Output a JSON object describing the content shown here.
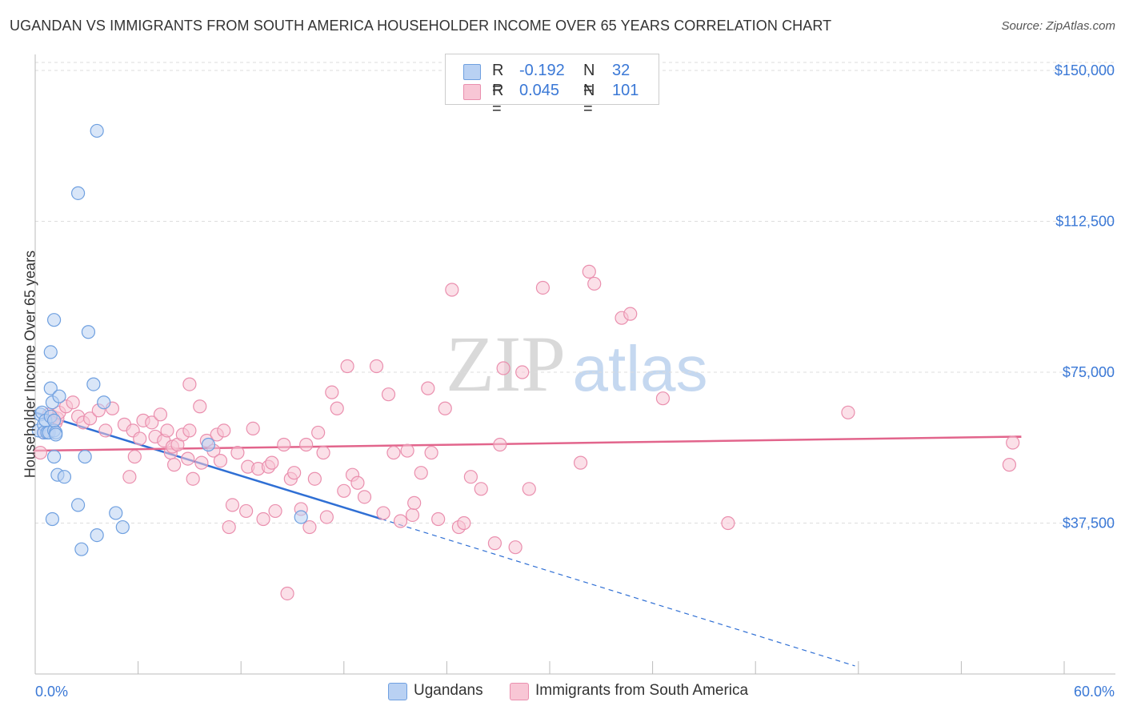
{
  "header": {
    "title": "UGANDAN VS IMMIGRANTS FROM SOUTH AMERICA HOUSEHOLDER INCOME OVER 65 YEARS CORRELATION CHART",
    "source": "Source: ZipAtlas.com"
  },
  "watermark": {
    "zip": "ZIP",
    "atlas": "atlas"
  },
  "legend": {
    "rows": [
      {
        "r_label": "R =",
        "r_value": "-0.192",
        "n_label": "N =",
        "n_value": "32",
        "color": "#aac8f4"
      },
      {
        "r_label": "R =",
        "r_value": "0.045",
        "n_label": "N =",
        "n_value": "101",
        "color": "#f6b9ca"
      }
    ]
  },
  "chart_data": {
    "type": "scatter",
    "title": "UGANDAN VS IMMIGRANTS FROM SOUTH AMERICA HOUSEHOLDER INCOME OVER 65 YEARS CORRELATION CHART",
    "xlabel": "",
    "ylabel": "Householder Income Over 65 years",
    "xlim": [
      0,
      60
    ],
    "ylim": [
      0,
      152000
    ],
    "x_tick_labels": [
      "0.0%",
      "60.0%"
    ],
    "y_ticks": [
      37500,
      75000,
      112500,
      150000
    ],
    "y_tick_labels": [
      "$37,500",
      "$75,000",
      "$112,500",
      "$150,000"
    ],
    "grid": true,
    "legend_position": "bottom",
    "series": [
      {
        "name": "Ugandans",
        "color": "#6fa0e0",
        "fill": "#b9d1f3",
        "line_color": "#2f6fd4",
        "trend": {
          "x": [
            0,
            20.2
          ],
          "y": [
            65000,
            38500
          ],
          "dashed_to": [
            47.8,
            2000
          ]
        },
        "points": [
          [
            0.2,
            60500
          ],
          [
            0.3,
            64500
          ],
          [
            0.4,
            65000
          ],
          [
            0.5,
            62000
          ],
          [
            0.5,
            60000
          ],
          [
            0.6,
            63000
          ],
          [
            0.7,
            60000
          ],
          [
            0.8,
            60000
          ],
          [
            0.9,
            64000
          ],
          [
            0.9,
            80000
          ],
          [
            0.9,
            71000
          ],
          [
            1.0,
            67500
          ],
          [
            1.1,
            60500
          ],
          [
            1.1,
            63000
          ],
          [
            1.1,
            54000
          ],
          [
            1.0,
            38500
          ],
          [
            1.1,
            88000
          ],
          [
            1.2,
            60000
          ],
          [
            1.2,
            59500
          ],
          [
            1.3,
            49500
          ],
          [
            1.4,
            69000
          ],
          [
            1.7,
            49000
          ],
          [
            2.5,
            42000
          ],
          [
            2.5,
            119500
          ],
          [
            2.7,
            31000
          ],
          [
            2.9,
            54000
          ],
          [
            3.1,
            85000
          ],
          [
            3.4,
            72000
          ],
          [
            3.6,
            34500
          ],
          [
            3.6,
            135000
          ],
          [
            4.0,
            67500
          ],
          [
            4.7,
            40000
          ],
          [
            5.1,
            36500
          ],
          [
            10.1,
            57000
          ],
          [
            15.5,
            39000
          ]
        ]
      },
      {
        "name": "Immigrants from South America",
        "color": "#ea8fae",
        "fill": "#f8c6d5",
        "line_color": "#e2658c",
        "trend": {
          "x": [
            0,
            57.5
          ],
          "y": [
            55500,
            59000
          ]
        },
        "points": [
          [
            0.3,
            55000
          ],
          [
            0.5,
            60000
          ],
          [
            0.8,
            64500
          ],
          [
            1.0,
            64000
          ],
          [
            1.1,
            63000
          ],
          [
            1.2,
            62500
          ],
          [
            1.3,
            63500
          ],
          [
            1.4,
            65000
          ],
          [
            1.8,
            66500
          ],
          [
            2.2,
            67500
          ],
          [
            2.5,
            64000
          ],
          [
            2.8,
            62500
          ],
          [
            3.2,
            63500
          ],
          [
            3.7,
            65500
          ],
          [
            4.1,
            60500
          ],
          [
            4.5,
            66000
          ],
          [
            5.2,
            62000
          ],
          [
            5.5,
            49000
          ],
          [
            5.7,
            60500
          ],
          [
            5.8,
            54000
          ],
          [
            6.1,
            58500
          ],
          [
            6.3,
            63000
          ],
          [
            6.8,
            62500
          ],
          [
            7.0,
            59000
          ],
          [
            7.3,
            64500
          ],
          [
            7.5,
            58000
          ],
          [
            7.7,
            60500
          ],
          [
            7.9,
            55000
          ],
          [
            8.0,
            56500
          ],
          [
            8.1,
            52000
          ],
          [
            8.3,
            57000
          ],
          [
            8.6,
            59500
          ],
          [
            8.9,
            53500
          ],
          [
            9.0,
            60500
          ],
          [
            9.2,
            48500
          ],
          [
            9.0,
            72000
          ],
          [
            9.6,
            66500
          ],
          [
            9.7,
            52500
          ],
          [
            10.0,
            58000
          ],
          [
            10.4,
            55500
          ],
          [
            10.6,
            59500
          ],
          [
            10.8,
            53000
          ],
          [
            11.0,
            60500
          ],
          [
            11.3,
            36500
          ],
          [
            11.5,
            42000
          ],
          [
            11.8,
            55000
          ],
          [
            12.3,
            40500
          ],
          [
            12.4,
            51500
          ],
          [
            12.7,
            61000
          ],
          [
            13.0,
            51000
          ],
          [
            13.3,
            38500
          ],
          [
            13.6,
            51500
          ],
          [
            13.8,
            52500
          ],
          [
            14.0,
            40500
          ],
          [
            14.5,
            57000
          ],
          [
            14.7,
            20000
          ],
          [
            14.9,
            48500
          ],
          [
            15.1,
            50000
          ],
          [
            15.5,
            41000
          ],
          [
            15.8,
            57000
          ],
          [
            16.0,
            36500
          ],
          [
            16.3,
            48500
          ],
          [
            16.5,
            60000
          ],
          [
            16.8,
            55000
          ],
          [
            17.0,
            39000
          ],
          [
            17.3,
            70000
          ],
          [
            17.6,
            66000
          ],
          [
            18.0,
            45500
          ],
          [
            18.2,
            76500
          ],
          [
            18.5,
            49500
          ],
          [
            18.8,
            47500
          ],
          [
            19.2,
            44000
          ],
          [
            19.9,
            76500
          ],
          [
            20.3,
            40000
          ],
          [
            20.6,
            69500
          ],
          [
            20.9,
            55000
          ],
          [
            21.3,
            38000
          ],
          [
            21.7,
            55500
          ],
          [
            22.0,
            39500
          ],
          [
            22.1,
            42500
          ],
          [
            22.5,
            50000
          ],
          [
            22.9,
            71000
          ],
          [
            23.1,
            55000
          ],
          [
            23.5,
            38500
          ],
          [
            23.9,
            66000
          ],
          [
            24.3,
            95500
          ],
          [
            24.7,
            36500
          ],
          [
            25.0,
            37500
          ],
          [
            25.4,
            49000
          ],
          [
            26.0,
            46000
          ],
          [
            26.8,
            32500
          ],
          [
            27.1,
            57000
          ],
          [
            27.3,
            76000
          ],
          [
            28.0,
            31500
          ],
          [
            28.4,
            75000
          ],
          [
            28.8,
            46000
          ],
          [
            29.6,
            96000
          ],
          [
            31.8,
            52500
          ],
          [
            32.3,
            100000
          ],
          [
            32.6,
            97000
          ],
          [
            34.2,
            88500
          ],
          [
            34.7,
            89500
          ],
          [
            36.6,
            68500
          ],
          [
            40.4,
            37500
          ],
          [
            47.4,
            65000
          ],
          [
            56.8,
            52000
          ],
          [
            57.0,
            57500
          ]
        ]
      }
    ]
  },
  "bottom_legend": {
    "items": [
      {
        "label": "Ugandans",
        "color": "#b9d1f3"
      },
      {
        "label": "Immigrants from South America",
        "color": "#f8c6d5"
      }
    ]
  }
}
